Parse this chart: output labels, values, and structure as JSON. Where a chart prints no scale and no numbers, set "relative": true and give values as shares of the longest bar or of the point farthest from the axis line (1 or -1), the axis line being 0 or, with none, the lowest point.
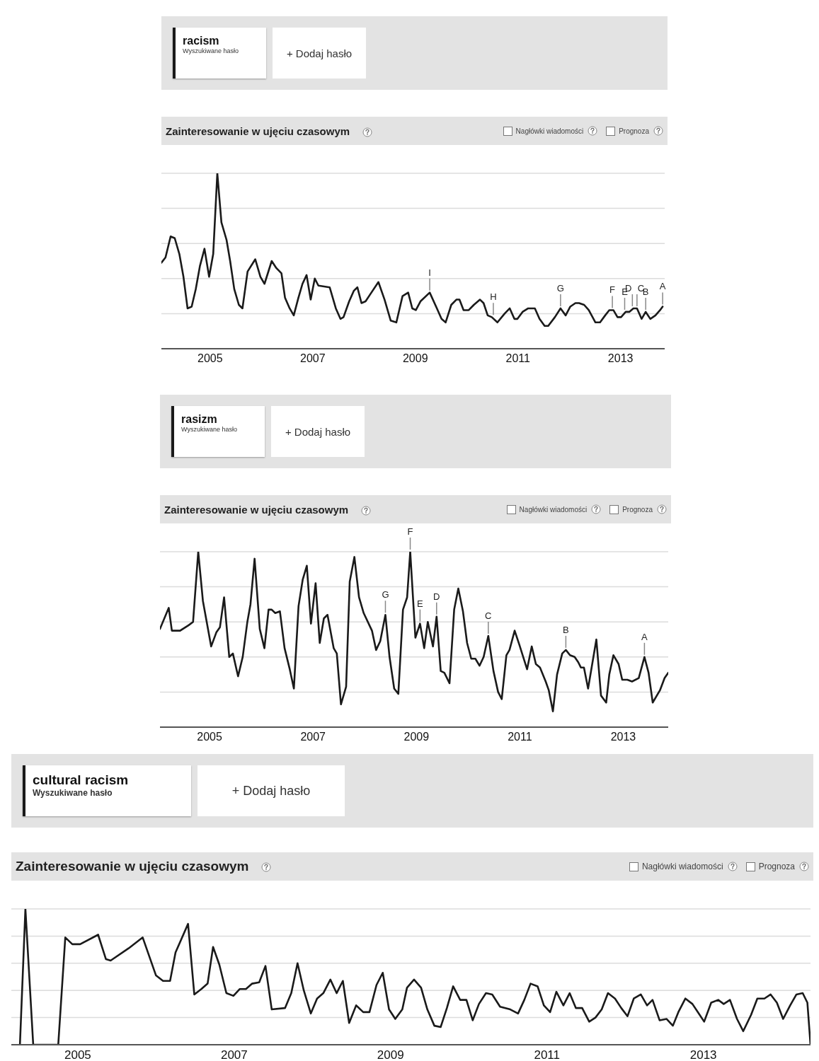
{
  "chart_data": [
    {
      "type": "line",
      "title": "Zainteresowanie w ujęciu czasowym",
      "relative": true,
      "grid": "y",
      "legend": "top left",
      "xlim": [
        2004.05,
        2013.86
      ],
      "xticks": [
        2005,
        2007,
        2009,
        2011,
        2013
      ],
      "x": [
        2004.05,
        2004.13,
        2004.23,
        2004.31,
        2004.4,
        2004.48,
        2004.56,
        2004.64,
        2004.72,
        2004.8,
        2004.89,
        2004.98,
        2005.06,
        2005.14,
        2005.22,
        2005.32,
        2005.39,
        2005.47,
        2005.56,
        2005.63,
        2005.73,
        2005.88,
        2005.98,
        2006.06,
        2006.2,
        2006.29,
        2006.39,
        2006.46,
        2006.55,
        2006.63,
        2006.72,
        2006.8,
        2006.88,
        2006.96,
        2007.04,
        2007.11,
        2007.33,
        2007.45,
        2007.54,
        2007.6,
        2007.71,
        2007.8,
        2007.87,
        2007.95,
        2008.03,
        2008.12,
        2008.28,
        2008.4,
        2008.52,
        2008.63,
        2008.75,
        2008.86,
        2008.94,
        2009.01,
        2009.1,
        2009.28,
        2009.42,
        2009.51,
        2009.59,
        2009.7,
        2009.8,
        2009.86,
        2009.94,
        2010.04,
        2010.14,
        2010.26,
        2010.33,
        2010.41,
        2010.49,
        2010.6,
        2010.74,
        2010.84,
        2010.93,
        2010.99,
        2011.09,
        2011.2,
        2011.33,
        2011.42,
        2011.52,
        2011.59,
        2011.72,
        2011.83,
        2011.93,
        2012.02,
        2012.12,
        2012.19,
        2012.29,
        2012.38,
        2012.51,
        2012.6,
        2012.7,
        2012.78,
        2012.86,
        2012.94,
        2013.01,
        2013.1,
        2013.17,
        2013.25,
        2013.32,
        2013.41,
        2013.49,
        2013.58,
        2013.68,
        2013.77,
        2013.82
      ],
      "series": [
        {
          "name": "racism",
          "color": "#1a1a1a",
          "values": [
            0.49,
            0.52,
            0.64,
            0.63,
            0.54,
            0.41,
            0.23,
            0.24,
            0.34,
            0.47,
            0.57,
            0.41,
            0.54,
            1,
            0.72,
            0.62,
            0.5,
            0.34,
            0.25,
            0.23,
            0.44,
            0.51,
            0.41,
            0.37,
            0.5,
            0.46,
            0.43,
            0.29,
            0.23,
            0.19,
            0.29,
            0.37,
            0.42,
            0.28,
            0.4,
            0.36,
            0.35,
            0.23,
            0.17,
            0.18,
            0.27,
            0.33,
            0.35,
            0.26,
            0.27,
            0.31,
            0.38,
            0.28,
            0.16,
            0.15,
            0.3,
            0.32,
            0.23,
            0.22,
            0.27,
            0.32,
            0.23,
            0.17,
            0.15,
            0.25,
            0.28,
            0.28,
            0.22,
            0.22,
            0.25,
            0.28,
            0.26,
            0.19,
            0.18,
            0.15,
            0.2,
            0.23,
            0.17,
            0.17,
            0.21,
            0.23,
            0.23,
            0.17,
            0.13,
            0.13,
            0.18,
            0.23,
            0.19,
            0.24,
            0.26,
            0.26,
            0.25,
            0.22,
            0.15,
            0.15,
            0.19,
            0.22,
            0.22,
            0.18,
            0.18,
            0.21,
            0.21,
            0.23,
            0.23,
            0.17,
            0.21,
            0.17,
            0.19,
            0.22,
            0.24
          ]
        }
      ],
      "annotations": [
        "Wyszukiwane hasło",
        "+ Dodaj hasło",
        "Nagłówki wiadomości",
        "Prognoza",
        {
          "text": "I",
          "x": 2009.28,
          "y": 0.32
        },
        {
          "text": "H",
          "x": 2010.52,
          "y": 0.18
        },
        {
          "text": "G",
          "x": 2011.83,
          "y": 0.23
        },
        {
          "text": "F",
          "x": 2012.84,
          "y": 0.22
        },
        {
          "text": "E",
          "x": 2013.08,
          "y": 0.21
        },
        {
          "text": "D",
          "x": 2013.23,
          "y": 0.23
        },
        {
          "text": "C",
          "x": 2013.32,
          "y": 0.23
        },
        {
          "text": "B",
          "x": 2013.49,
          "y": 0.21
        },
        {
          "text": "A",
          "x": 2013.82,
          "y": 0.24
        }
      ]
    },
    {
      "type": "line",
      "title": "Zainteresowanie w ujęciu czasowym",
      "relative": true,
      "grid": "y",
      "legend": "top left",
      "xlim": [
        2004.04,
        2013.87
      ],
      "xticks": [
        2005,
        2007,
        2009,
        2011,
        2013
      ],
      "x": [
        2004.04,
        2004.21,
        2004.27,
        2004.43,
        2004.59,
        2004.68,
        2004.78,
        2004.87,
        2005.03,
        2005.13,
        2005.2,
        2005.28,
        2005.38,
        2005.45,
        2005.55,
        2005.64,
        2005.73,
        2005.79,
        2005.87,
        2005.97,
        2006.06,
        2006.14,
        2006.2,
        2006.27,
        2006.36,
        2006.45,
        2006.55,
        2006.63,
        2006.72,
        2006.8,
        2006.88,
        2006.96,
        2007.05,
        2007.13,
        2007.21,
        2007.28,
        2007.4,
        2007.46,
        2007.54,
        2007.64,
        2007.71,
        2007.8,
        2007.89,
        2007.98,
        2008.14,
        2008.22,
        2008.3,
        2008.4,
        2008.48,
        2008.57,
        2008.65,
        2008.74,
        2008.82,
        2008.88,
        2008.98,
        2009.07,
        2009.15,
        2009.22,
        2009.32,
        2009.39,
        2009.47,
        2009.54,
        2009.64,
        2009.73,
        2009.81,
        2009.9,
        2009.98,
        2010.06,
        2010.14,
        2010.22,
        2010.3,
        2010.39,
        2010.49,
        2010.58,
        2010.65,
        2010.74,
        2010.8,
        2010.9,
        2010.99,
        2011.14,
        2011.23,
        2011.31,
        2011.39,
        2011.5,
        2011.56,
        2011.64,
        2011.72,
        2011.82,
        2011.89,
        2011.97,
        2012.06,
        2012.13,
        2012.18,
        2012.24,
        2012.32,
        2012.48,
        2012.57,
        2012.67,
        2012.73,
        2012.81,
        2012.91,
        2012.98,
        2013.08,
        2013.17,
        2013.3,
        2013.41,
        2013.49,
        2013.57,
        2013.71,
        2013.8,
        2013.87
      ],
      "series": [
        {
          "name": "rasizm",
          "color": "#1a1a1a",
          "values": [
            0.56,
            0.68,
            0.55,
            0.55,
            0.58,
            0.6,
            1,
            0.72,
            0.46,
            0.54,
            0.57,
            0.74,
            0.4,
            0.42,
            0.29,
            0.4,
            0.6,
            0.7,
            0.96,
            0.56,
            0.45,
            0.67,
            0.67,
            0.65,
            0.66,
            0.45,
            0.33,
            0.22,
            0.69,
            0.84,
            0.92,
            0.59,
            0.82,
            0.48,
            0.62,
            0.64,
            0.45,
            0.42,
            0.13,
            0.23,
            0.83,
            0.97,
            0.74,
            0.65,
            0.55,
            0.44,
            0.49,
            0.64,
            0.4,
            0.22,
            0.19,
            0.67,
            0.74,
            1,
            0.51,
            0.59,
            0.45,
            0.6,
            0.46,
            0.63,
            0.32,
            0.31,
            0.25,
            0.67,
            0.79,
            0.66,
            0.48,
            0.39,
            0.39,
            0.35,
            0.4,
            0.52,
            0.32,
            0.2,
            0.16,
            0.41,
            0.44,
            0.55,
            0.47,
            0.33,
            0.46,
            0.36,
            0.34,
            0.26,
            0.21,
            0.09,
            0.3,
            0.42,
            0.44,
            0.41,
            0.4,
            0.37,
            0.34,
            0.34,
            0.22,
            0.5,
            0.18,
            0.14,
            0.3,
            0.41,
            0.36,
            0.27,
            0.27,
            0.26,
            0.28,
            0.4,
            0.31,
            0.14,
            0.21,
            0.28,
            0.31
          ]
        }
      ],
      "annotations": [
        "Wyszukiwane hasło",
        "+ Dodaj hasło",
        "Nagłówki wiadomości",
        "Prognoza",
        {
          "text": "G",
          "x": 2008.4,
          "y": 0.64
        },
        {
          "text": "F",
          "x": 2008.88,
          "y": 1
        },
        {
          "text": "E",
          "x": 2009.07,
          "y": 0.59
        },
        {
          "text": "D",
          "x": 2009.39,
          "y": 0.63
        },
        {
          "text": "C",
          "x": 2010.39,
          "y": 0.52
        },
        {
          "text": "B",
          "x": 2011.89,
          "y": 0.44
        },
        {
          "text": "A",
          "x": 2013.41,
          "y": 0.4
        }
      ]
    },
    {
      "type": "line",
      "title": "Zainteresowanie w ujęciu czasowym",
      "relative": true,
      "grid": "y",
      "legend": "top left",
      "xlim": [
        2004.15,
        2014.37
      ],
      "xticks": [
        2005,
        2007,
        2009,
        2011,
        2013
      ],
      "x": [
        2004.26,
        2004.33,
        2004.43,
        2004.75,
        2004.84,
        2004.93,
        2005.03,
        2005.26,
        2005.36,
        2005.42,
        2005.65,
        2005.83,
        2006.0,
        2006.09,
        2006.18,
        2006.25,
        2006.41,
        2006.49,
        2006.58,
        2006.66,
        2006.73,
        2006.81,
        2006.9,
        2006.99,
        2007.07,
        2007.15,
        2007.23,
        2007.32,
        2007.4,
        2007.48,
        2007.65,
        2007.73,
        2007.81,
        2007.89,
        2007.98,
        2008.06,
        2008.14,
        2008.23,
        2008.31,
        2008.39,
        2008.47,
        2008.56,
        2008.65,
        2008.73,
        2008.82,
        2008.9,
        2008.98,
        2009.06,
        2009.15,
        2009.21,
        2009.3,
        2009.39,
        2009.47,
        2009.56,
        2009.64,
        2009.72,
        2009.8,
        2009.89,
        2009.97,
        2010.05,
        2010.13,
        2010.22,
        2010.3,
        2010.4,
        2010.53,
        2010.63,
        2010.71,
        2010.79,
        2010.88,
        2010.96,
        2011.04,
        2011.12,
        2011.21,
        2011.29,
        2011.37,
        2011.45,
        2011.54,
        2011.62,
        2011.7,
        2011.78,
        2011.87,
        2011.95,
        2012.03,
        2012.11,
        2012.2,
        2012.28,
        2012.35,
        2012.44,
        2012.53,
        2012.61,
        2012.68,
        2012.77,
        2012.86,
        2012.93,
        2013.01,
        2013.1,
        2013.19,
        2013.26,
        2013.34,
        2013.43,
        2013.51,
        2013.61,
        2013.69,
        2013.78,
        2013.86,
        2013.94,
        2014.02,
        2014.11,
        2014.19,
        2014.27,
        2014.33,
        2014.37
      ],
      "series": [
        {
          "name": "cultural racism",
          "color": "#1a1a1a",
          "values": [
            0,
            1,
            0,
            0,
            0.79,
            0.74,
            0.74,
            0.81,
            0.63,
            0.62,
            0.71,
            0.79,
            0.51,
            0.47,
            0.47,
            0.68,
            0.89,
            0.37,
            0.41,
            0.45,
            0.72,
            0.59,
            0.38,
            0.36,
            0.41,
            0.41,
            0.45,
            0.46,
            0.58,
            0.26,
            0.27,
            0.38,
            0.6,
            0.4,
            0.23,
            0.34,
            0.38,
            0.48,
            0.38,
            0.47,
            0.16,
            0.29,
            0.24,
            0.24,
            0.44,
            0.53,
            0.26,
            0.19,
            0.26,
            0.42,
            0.48,
            0.42,
            0.26,
            0.14,
            0.13,
            0.27,
            0.43,
            0.33,
            0.33,
            0.18,
            0.3,
            0.38,
            0.37,
            0.28,
            0.26,
            0.23,
            0.33,
            0.45,
            0.43,
            0.29,
            0.24,
            0.39,
            0.29,
            0.38,
            0.27,
            0.27,
            0.17,
            0.2,
            0.26,
            0.38,
            0.34,
            0.27,
            0.21,
            0.34,
            0.37,
            0.29,
            0.33,
            0.18,
            0.19,
            0.14,
            0.24,
            0.34,
            0.3,
            0.24,
            0.17,
            0.31,
            0.33,
            0.3,
            0.33,
            0.19,
            0.1,
            0.22,
            0.34,
            0.34,
            0.37,
            0.31,
            0.19,
            0.29,
            0.37,
            0.38,
            0.31,
            0
          ]
        }
      ],
      "annotations": [
        "Wyszukiwane hasło",
        "+ Dodaj hasło",
        "Nagłówki wiadomości",
        "Prognoza"
      ]
    }
  ]
}
